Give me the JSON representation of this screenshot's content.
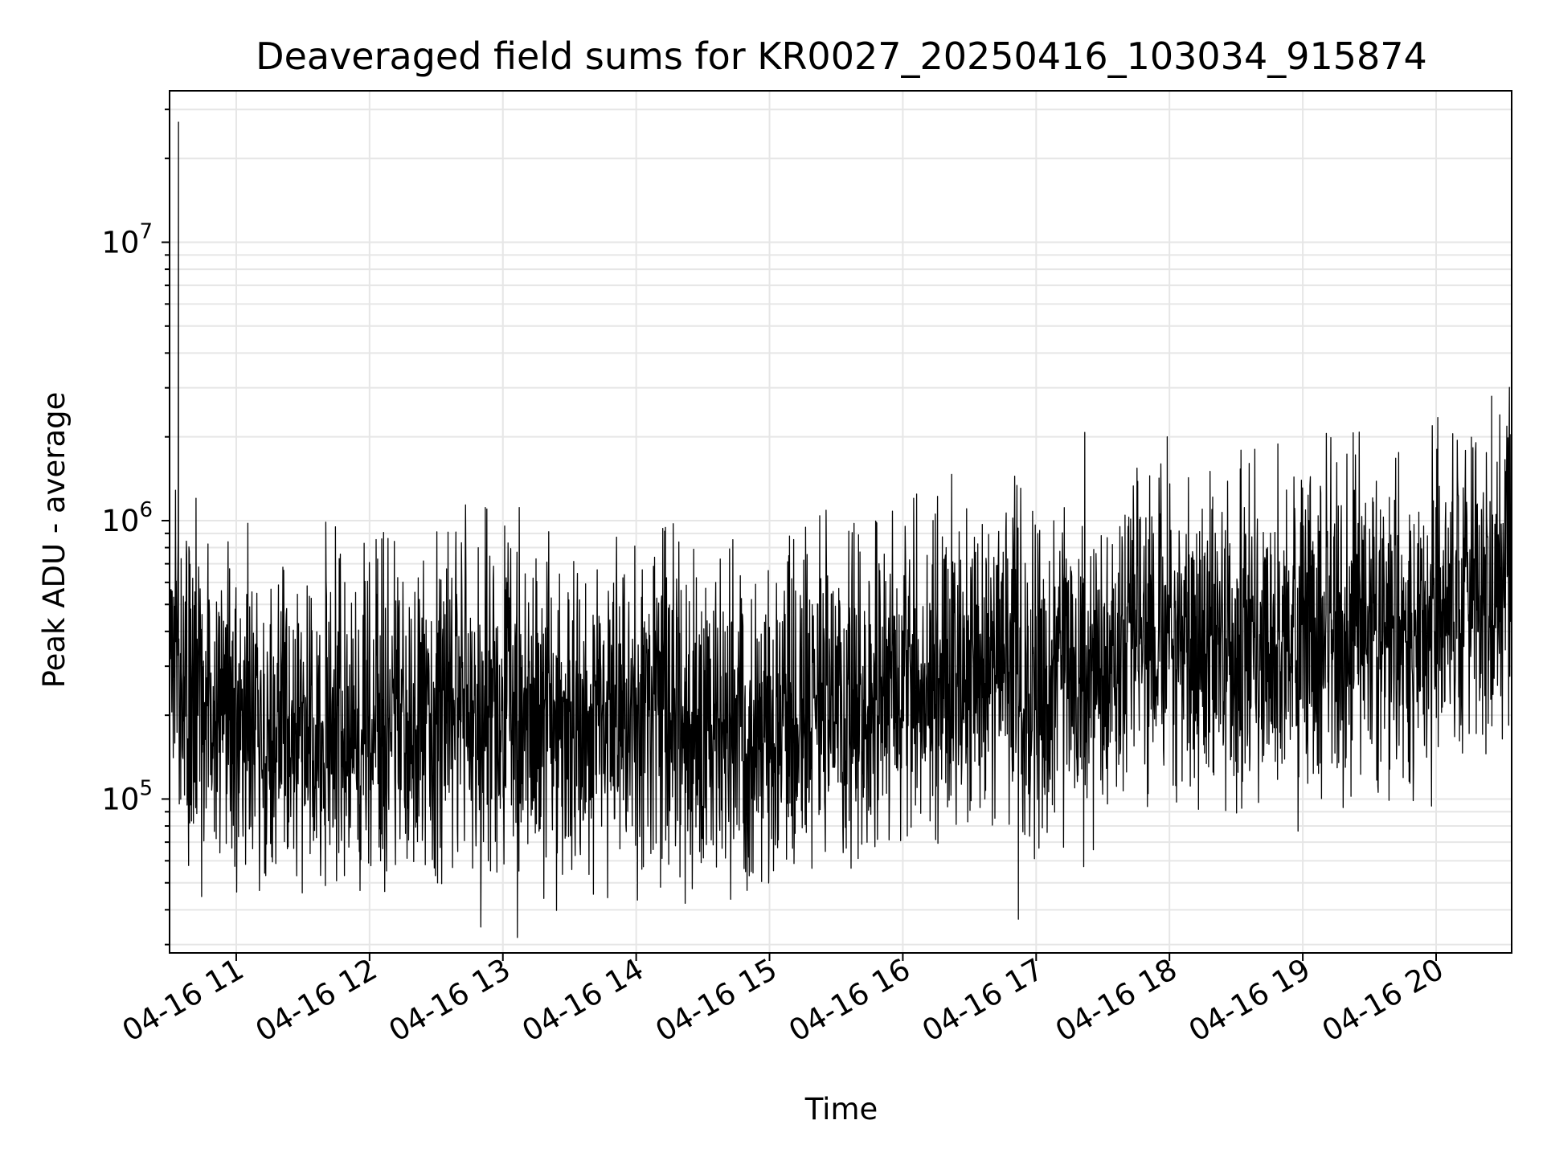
{
  "chart_data": {
    "type": "line",
    "title": "Deaveraged field sums for KR0027_20250416_103034_915874",
    "xlabel": "Time",
    "ylabel": "Peak ADU - average",
    "yscale": "log",
    "ylim": [
      28000,
      35000000
    ],
    "xlim": [
      "2025-04-16 10:30",
      "2025-04-16 20:34"
    ],
    "grid": true,
    "line_color": "#000000",
    "grid_color": "#e6e6e6",
    "x_ticks": [
      {
        "label": "04-16 11",
        "time": "2025-04-16 11:00"
      },
      {
        "label": "04-16 12",
        "time": "2025-04-16 12:00"
      },
      {
        "label": "04-16 13",
        "time": "2025-04-16 13:00"
      },
      {
        "label": "04-16 14",
        "time": "2025-04-16 14:00"
      },
      {
        "label": "04-16 15",
        "time": "2025-04-16 15:00"
      },
      {
        "label": "04-16 16",
        "time": "2025-04-16 16:00"
      },
      {
        "label": "04-16 17",
        "time": "2025-04-16 17:00"
      },
      {
        "label": "04-16 18",
        "time": "2025-04-16 18:00"
      },
      {
        "label": "04-16 19",
        "time": "2025-04-16 19:00"
      },
      {
        "label": "04-16 20",
        "time": "2025-04-16 20:00"
      }
    ],
    "y_ticks": [
      {
        "base": "10",
        "exp": "5",
        "value": 100000
      },
      {
        "base": "10",
        "exp": "6",
        "value": 1000000
      },
      {
        "base": "10",
        "exp": "7",
        "value": 10000000
      }
    ],
    "series": [
      {
        "points": [
          [
            "2025-04-16 10:30",
            450000
          ],
          [
            "2025-04-16 10:34",
            27000000
          ],
          [
            "2025-04-16 10:36",
            230000
          ],
          [
            "2025-04-16 10:45",
            220000
          ],
          [
            "2025-04-16 11:00",
            180000
          ],
          [
            "2025-04-16 11:15",
            170000
          ],
          [
            "2025-04-16 11:30",
            175000
          ],
          [
            "2025-04-16 11:45",
            185000
          ],
          [
            "2025-04-16 12:00",
            180000
          ],
          [
            "2025-04-16 12:15",
            190000
          ],
          [
            "2025-04-16 12:30",
            195000
          ],
          [
            "2025-04-16 12:45",
            205000
          ],
          [
            "2025-04-16 13:00",
            200000
          ],
          [
            "2025-04-16 13:15",
            205000
          ],
          [
            "2025-04-16 13:30",
            210000
          ],
          [
            "2025-04-16 13:45",
            200000
          ],
          [
            "2025-04-16 14:00",
            195000
          ],
          [
            "2025-04-16 14:15",
            190000
          ],
          [
            "2025-04-16 14:30",
            185000
          ],
          [
            "2025-04-16 14:45",
            180000
          ],
          [
            "2025-04-16 15:00",
            185000
          ],
          [
            "2025-04-16 15:15",
            190000
          ],
          [
            "2025-04-16 15:30",
            200000
          ],
          [
            "2025-04-16 15:45",
            215000
          ],
          [
            "2025-04-16 16:00",
            230000
          ],
          [
            "2025-04-16 16:15",
            260000
          ],
          [
            "2025-04-16 16:30",
            300000
          ],
          [
            "2025-04-16 16:45",
            330000
          ],
          [
            "2025-04-16 16:52",
            37000
          ],
          [
            "2025-04-16 17:00",
            250000
          ],
          [
            "2025-04-16 17:15",
            280000
          ],
          [
            "2025-04-16 17:30",
            320000
          ],
          [
            "2025-04-16 17:45",
            350000
          ],
          [
            "2025-04-16 17:59",
            2000000
          ],
          [
            "2025-04-16 18:00",
            360000
          ],
          [
            "2025-04-16 18:15",
            350000
          ],
          [
            "2025-04-16 18:30",
            340000
          ],
          [
            "2025-04-16 18:45",
            350000
          ],
          [
            "2025-04-16 19:00",
            360000
          ],
          [
            "2025-04-16 19:15",
            370000
          ],
          [
            "2025-04-16 19:30",
            380000
          ],
          [
            "2025-04-16 19:45",
            390000
          ],
          [
            "2025-04-16 20:00",
            420000
          ],
          [
            "2025-04-16 20:15",
            500000
          ],
          [
            "2025-04-16 20:25",
            2800000
          ],
          [
            "2025-04-16 20:34",
            650000
          ]
        ]
      }
    ]
  }
}
